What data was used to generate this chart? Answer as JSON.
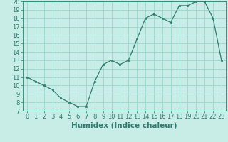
{
  "x": [
    0,
    1,
    2,
    3,
    4,
    5,
    6,
    7,
    8,
    9,
    10,
    11,
    12,
    13,
    14,
    15,
    16,
    17,
    18,
    19,
    20,
    21,
    22,
    23
  ],
  "y": [
    11,
    10.5,
    10,
    9.5,
    8.5,
    8,
    7.5,
    7.5,
    10.5,
    12.5,
    13,
    12.5,
    13,
    15.5,
    18,
    18.5,
    18,
    17.5,
    19.5,
    19.5,
    20,
    20,
    18,
    13
  ],
  "xlabel": "Humidex (Indice chaleur)",
  "ylim": [
    7,
    20
  ],
  "xlim": [
    -0.5,
    23.5
  ],
  "yticks": [
    7,
    8,
    9,
    10,
    11,
    12,
    13,
    14,
    15,
    16,
    17,
    18,
    19,
    20
  ],
  "xticks": [
    0,
    1,
    2,
    3,
    4,
    5,
    6,
    7,
    8,
    9,
    10,
    11,
    12,
    13,
    14,
    15,
    16,
    17,
    18,
    19,
    20,
    21,
    22,
    23
  ],
  "line_color": "#2e7d6e",
  "marker_color": "#2e7d6e",
  "bg_color": "#c8ece6",
  "grid_color": "#a0d8d0",
  "tick_label_color": "#2e7d6e",
  "xlabel_color": "#2e7d6e",
  "xlabel_fontsize": 7.5,
  "tick_fontsize": 6
}
